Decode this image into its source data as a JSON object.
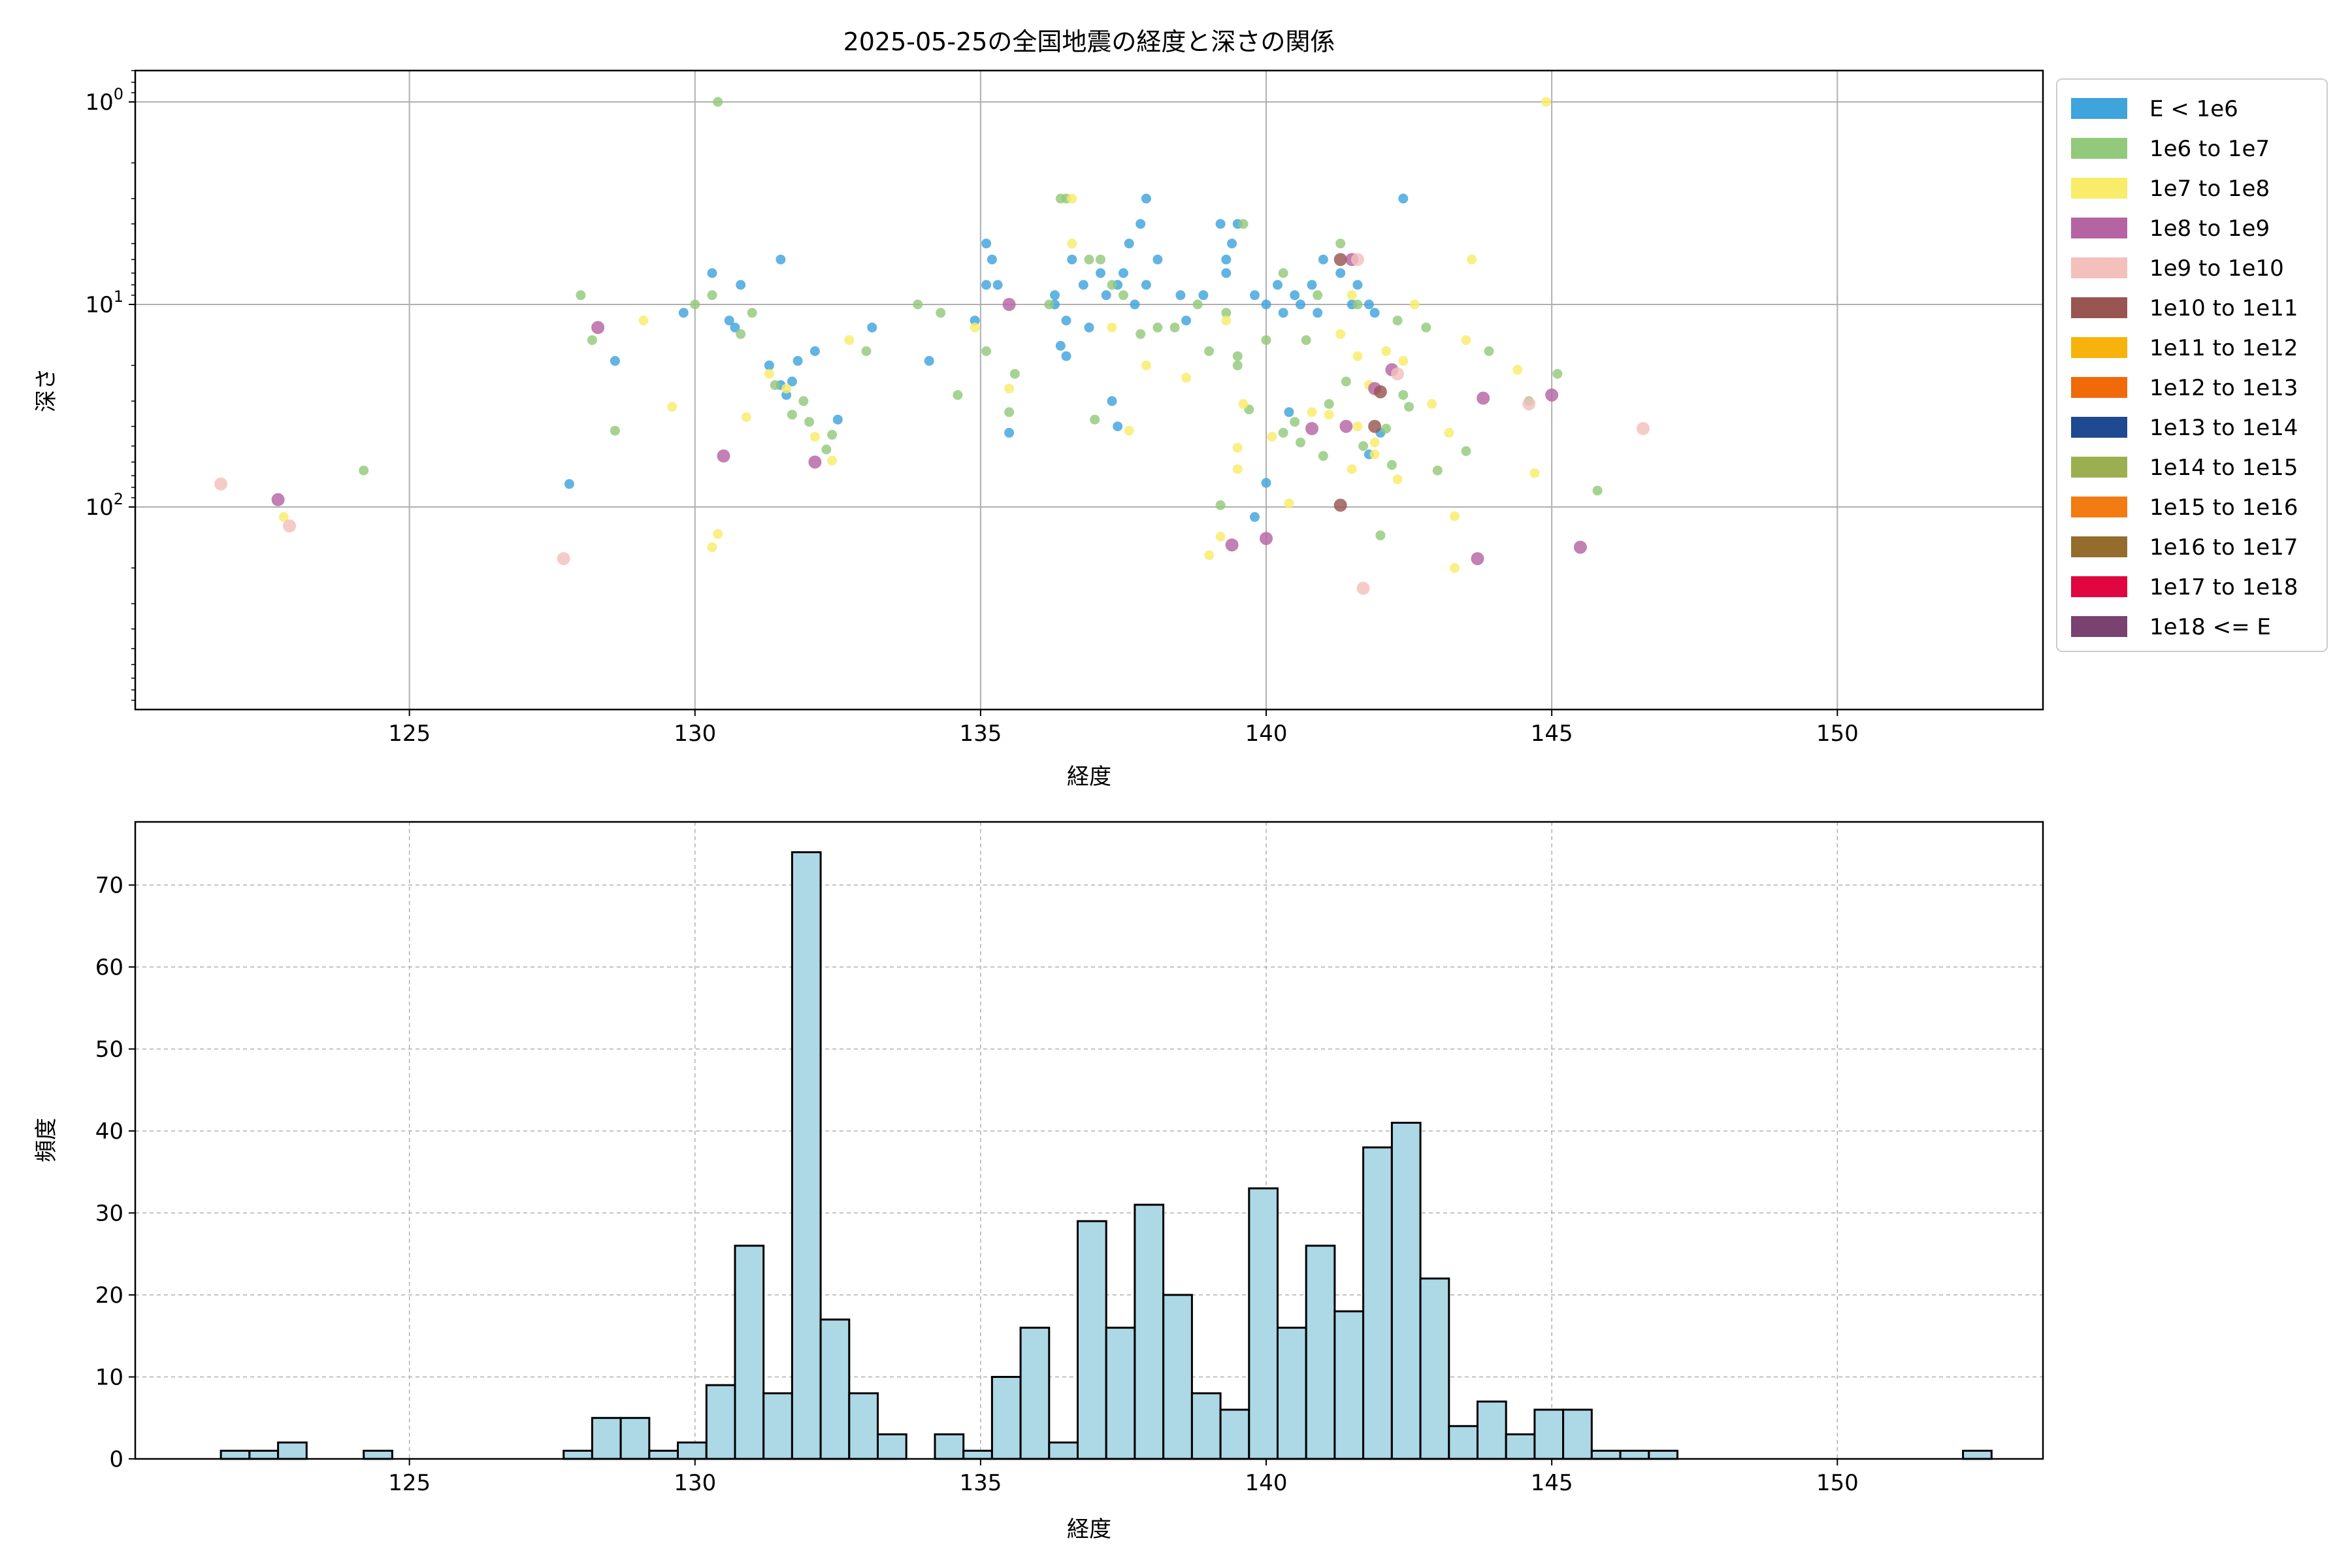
{
  "chart_data": [
    {
      "type": "scatter",
      "title": "2025-05-25の全国地震の経度と深さの関係",
      "xlabel": "経度",
      "ylabel": "深さ",
      "xlim": [
        120.2,
        153.6
      ],
      "ylim": [
        1000,
        0.7
      ],
      "yscale": "log",
      "y_inverted": true,
      "grid": true,
      "x_ticks": [
        125,
        130,
        135,
        140,
        145,
        150
      ],
      "x_tick_labels": [
        "125",
        "130",
        "135",
        "140",
        "145",
        "150"
      ],
      "y_ticks": [
        1,
        10,
        100
      ],
      "y_tick_labels": [
        "10^0",
        "10^1",
        "10^2"
      ],
      "legend": {
        "position": "right-outside-top",
        "entries": [
          {
            "label": "E < 1e6",
            "color": "#3fa3dc"
          },
          {
            "label": "1e6 to 1e7",
            "color": "#93c97a"
          },
          {
            "label": "1e7 to 1e8",
            "color": "#f9ec6a"
          },
          {
            "label": "1e8 to 1e9",
            "color": "#b564a3"
          },
          {
            "label": "1e9 to 1e10",
            "color": "#f3c0bc"
          },
          {
            "label": "1e10 to 1e11",
            "color": "#995551"
          },
          {
            "label": "1e11 to 1e12",
            "color": "#f7b30c"
          },
          {
            "label": "1e12 to 1e13",
            "color": "#f06a0a"
          },
          {
            "label": "1e13 to 1e14",
            "color": "#1f4a91"
          },
          {
            "label": "1e14 to 1e15",
            "color": "#9caf50"
          },
          {
            "label": "1e15 to 1e16",
            "color": "#f27b12"
          },
          {
            "label": "1e16 to 1e17",
            "color": "#946d2c"
          },
          {
            "label": "1e17 to 1e18",
            "color": "#e0063f"
          },
          {
            "label": "1e18 <= E",
            "color": "#7a4270"
          }
        ]
      },
      "series": [
        {
          "name": "E < 1e6",
          "points": [
            [
              129.8,
              11
            ],
            [
              130.3,
              7
            ],
            [
              130.6,
              12
            ],
            [
              130.8,
              8
            ],
            [
              130.7,
              13
            ],
            [
              131.3,
              20
            ],
            [
              131.5,
              6
            ],
            [
              131.6,
              28
            ],
            [
              131.7,
              24
            ],
            [
              131.8,
              19
            ],
            [
              131.5,
              25
            ],
            [
              132.1,
              17
            ],
            [
              132.5,
              37
            ],
            [
              127.8,
              77
            ],
            [
              128.6,
              19
            ],
            [
              133.1,
              13
            ],
            [
              134.1,
              19
            ],
            [
              134.9,
              12
            ],
            [
              135.1,
              8
            ],
            [
              135.2,
              6
            ],
            [
              135.3,
              8
            ],
            [
              135.1,
              5
            ],
            [
              135.5,
              43
            ],
            [
              136.3,
              10
            ],
            [
              136.3,
              9
            ],
            [
              136.5,
              12
            ],
            [
              136.4,
              16
            ],
            [
              136.6,
              6
            ],
            [
              136.8,
              8
            ],
            [
              136.9,
              13
            ],
            [
              137.1,
              7
            ],
            [
              137.2,
              9
            ],
            [
              137.4,
              8
            ],
            [
              137.5,
              7
            ],
            [
              137.6,
              5
            ],
            [
              137.8,
              4
            ],
            [
              137.9,
              8
            ],
            [
              137.7,
              10
            ],
            [
              137.9,
              3
            ],
            [
              138.1,
              6
            ],
            [
              138.5,
              9
            ],
            [
              138.6,
              12
            ],
            [
              138.9,
              9
            ],
            [
              139.2,
              4
            ],
            [
              139.3,
              6
            ],
            [
              139.4,
              5
            ],
            [
              139.3,
              7
            ],
            [
              139.5,
              4
            ],
            [
              139.8,
              9
            ],
            [
              140.0,
              10
            ],
            [
              140.2,
              8
            ],
            [
              140.3,
              11
            ],
            [
              140.5,
              9
            ],
            [
              140.6,
              10
            ],
            [
              140.8,
              8
            ],
            [
              140.9,
              11
            ],
            [
              141.0,
              6
            ],
            [
              141.3,
              7
            ],
            [
              141.5,
              10
            ],
            [
              141.6,
              8
            ],
            [
              141.8,
              10
            ],
            [
              141.9,
              11
            ],
            [
              142.4,
              3
            ],
            [
              142.0,
              43
            ],
            [
              141.8,
              55
            ],
            [
              140.4,
              34
            ],
            [
              140.0,
              76
            ],
            [
              139.8,
              112
            ],
            [
              137.4,
              40
            ],
            [
              137.3,
              30
            ],
            [
              136.5,
              18
            ]
          ]
        },
        {
          "name": "1e6 to 1e7",
          "points": [
            [
              128.0,
              9
            ],
            [
              128.2,
              15
            ],
            [
              130.3,
              9
            ],
            [
              130.0,
              10
            ],
            [
              130.8,
              14
            ],
            [
              131.0,
              11
            ],
            [
              131.4,
              25
            ],
            [
              131.9,
              30
            ],
            [
              132.3,
              52
            ],
            [
              132.4,
              44
            ],
            [
              133.0,
              17
            ],
            [
              133.9,
              10
            ],
            [
              134.3,
              11
            ],
            [
              134.6,
              28
            ],
            [
              135.1,
              17
            ],
            [
              135.6,
              22
            ],
            [
              136.2,
              10
            ],
            [
              136.5,
              3
            ],
            [
              136.9,
              6
            ],
            [
              137.1,
              6
            ],
            [
              137.3,
              8
            ],
            [
              137.5,
              9
            ],
            [
              137.8,
              14
            ],
            [
              138.1,
              13
            ],
            [
              138.4,
              13
            ],
            [
              138.8,
              10
            ],
            [
              139.0,
              17
            ],
            [
              139.3,
              11
            ],
            [
              139.5,
              18
            ],
            [
              139.5,
              20
            ],
            [
              140.0,
              15
            ],
            [
              140.3,
              7
            ],
            [
              140.5,
              38
            ],
            [
              140.7,
              15
            ],
            [
              141.1,
              31
            ],
            [
              141.4,
              24
            ],
            [
              141.7,
              50
            ],
            [
              142.1,
              41
            ],
            [
              142.3,
              12
            ],
            [
              142.5,
              32
            ],
            [
              142.8,
              13
            ],
            [
              143.5,
              53
            ],
            [
              143.9,
              17
            ],
            [
              144.6,
              30
            ],
            [
              145.1,
              22
            ],
            [
              145.8,
              83
            ],
            [
              130.4,
              1
            ],
            [
              142.0,
              138
            ],
            [
              141.3,
              5
            ],
            [
              139.2,
              98
            ],
            [
              128.6,
              42
            ],
            [
              124.2,
              66
            ],
            [
              132.0,
              38
            ],
            [
              131.7,
              35
            ],
            [
              135.5,
              34
            ],
            [
              136.4,
              3
            ],
            [
              137.0,
              37
            ],
            [
              139.6,
              4
            ],
            [
              139.7,
              33
            ],
            [
              140.6,
              48
            ],
            [
              141.0,
              56
            ],
            [
              142.4,
              28
            ],
            [
              143.0,
              66
            ],
            [
              141.6,
              10
            ],
            [
              140.9,
              9
            ],
            [
              142.2,
              62
            ],
            [
              140.3,
              43
            ]
          ]
        },
        {
          "name": "1e7 to 1e8",
          "points": [
            [
              129.1,
              12
            ],
            [
              129.6,
              32
            ],
            [
              130.4,
              136
            ],
            [
              130.3,
              158
            ],
            [
              130.9,
              36
            ],
            [
              131.3,
              22
            ],
            [
              131.6,
              26
            ],
            [
              132.1,
              45
            ],
            [
              132.4,
              59
            ],
            [
              132.7,
              15
            ],
            [
              134.9,
              13
            ],
            [
              135.5,
              26
            ],
            [
              136.6,
              5
            ],
            [
              136.6,
              3
            ],
            [
              137.3,
              13
            ],
            [
              137.6,
              42
            ],
            [
              137.9,
              20
            ],
            [
              138.6,
              23
            ],
            [
              139.3,
              12
            ],
            [
              139.2,
              140
            ],
            [
              139.0,
              173
            ],
            [
              139.5,
              51
            ],
            [
              140.1,
              45
            ],
            [
              140.4,
              96
            ],
            [
              140.8,
              34
            ],
            [
              141.1,
              35
            ],
            [
              141.6,
              40
            ],
            [
              141.8,
              25
            ],
            [
              142.1,
              17
            ],
            [
              142.4,
              19
            ],
            [
              143.2,
              43
            ],
            [
              143.5,
              15
            ],
            [
              144.4,
              21
            ],
            [
              144.9,
              1
            ],
            [
              142.6,
              10
            ],
            [
              143.3,
              111
            ],
            [
              143.3,
              200
            ],
            [
              142.3,
              73
            ],
            [
              141.9,
              55
            ],
            [
              141.6,
              18
            ],
            [
              144.7,
              68
            ],
            [
              141.5,
              65
            ],
            [
              143.6,
              6
            ],
            [
              139.5,
              65
            ],
            [
              122.8,
              112
            ],
            [
              142.9,
              31
            ],
            [
              141.3,
              14
            ],
            [
              141.5,
              9
            ],
            [
              139.6,
              31
            ],
            [
              141.9,
              48
            ]
          ]
        },
        {
          "name": "1e8 to 1e9",
          "points": [
            [
              128.3,
              13
            ],
            [
              130.5,
              56
            ],
            [
              132.1,
              60
            ],
            [
              122.7,
              92
            ],
            [
              135.5,
              10
            ],
            [
              139.4,
              154
            ],
            [
              140.0,
              143
            ],
            [
              140.8,
              41
            ],
            [
              141.4,
              40
            ],
            [
              141.9,
              26
            ],
            [
              142.2,
              21
            ],
            [
              143.8,
              29
            ],
            [
              145.0,
              28
            ],
            [
              145.5,
              158
            ],
            [
              143.7,
              180
            ],
            [
              141.5,
              6
            ]
          ]
        },
        {
          "name": "1e9 to 1e10",
          "points": [
            [
              121.7,
              77
            ],
            [
              122.9,
              124
            ],
            [
              127.7,
              180
            ],
            [
              141.7,
              252
            ],
            [
              144.6,
              31
            ],
            [
              146.6,
              41
            ],
            [
              142.3,
              22
            ],
            [
              141.6,
              6
            ]
          ]
        },
        {
          "name": "1e10 to 1e11",
          "points": [
            [
              141.3,
              98
            ],
            [
              141.9,
              40
            ],
            [
              142.0,
              27
            ],
            [
              141.3,
              6
            ]
          ]
        }
      ]
    },
    {
      "type": "bar",
      "subtype": "histogram",
      "title": "",
      "xlabel": "経度",
      "ylabel": "頻度",
      "xlim": [
        120.2,
        153.6
      ],
      "ylim": [
        0,
        77.7
      ],
      "grid": true,
      "color": "#add8e6",
      "edge_color": "#000000",
      "x_ticks": [
        125,
        130,
        135,
        140,
        145,
        150
      ],
      "x_tick_labels": [
        "125",
        "130",
        "135",
        "140",
        "145",
        "150"
      ],
      "y_ticks": [
        0,
        10,
        20,
        30,
        40,
        50,
        60,
        70
      ],
      "y_tick_labels": [
        "0",
        "10",
        "20",
        "30",
        "40",
        "50",
        "60",
        "70"
      ],
      "bin_start": 121.7,
      "bin_width": 0.5,
      "values": [
        1,
        1,
        2,
        0,
        0,
        1,
        0,
        0,
        0,
        0,
        0,
        0,
        1,
        5,
        5,
        1,
        2,
        9,
        26,
        8,
        74,
        17,
        8,
        3,
        0,
        3,
        1,
        10,
        16,
        2,
        29,
        16,
        31,
        20,
        8,
        6,
        33,
        16,
        26,
        18,
        38,
        41,
        22,
        4,
        7,
        3,
        6,
        6,
        1,
        1,
        1,
        0,
        0,
        0,
        0,
        0,
        0,
        0,
        0,
        0,
        0,
        1
      ]
    }
  ]
}
